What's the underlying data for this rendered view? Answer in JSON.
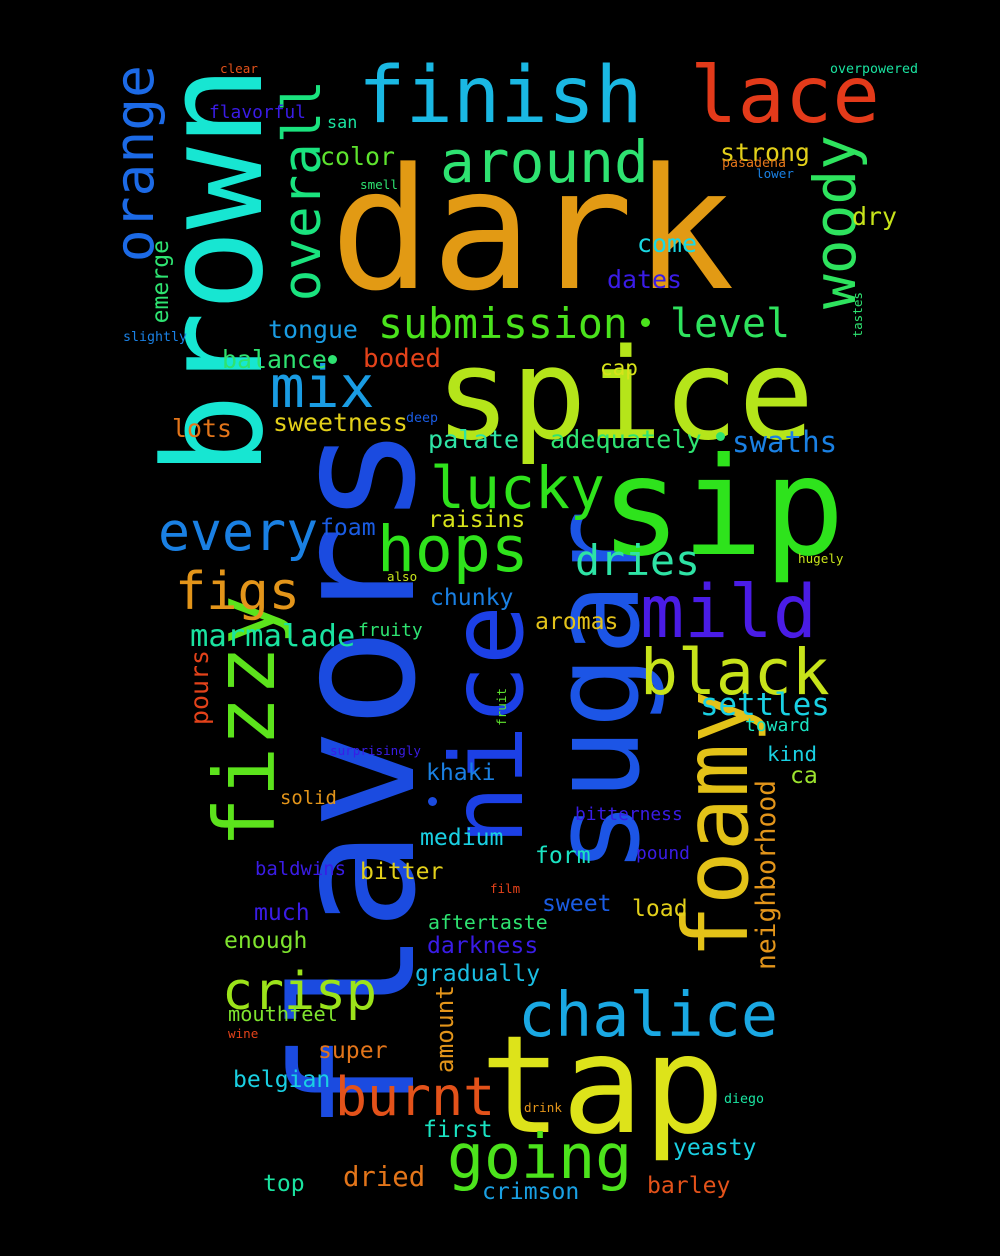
{
  "colors": {
    "background": "#000000"
  },
  "words": [
    {
      "text": "dark",
      "color": "#E29A14"
    },
    {
      "text": "flavors",
      "color": "#1B4BE0"
    },
    {
      "text": "spice",
      "color": "#B5E51A"
    },
    {
      "text": "tap",
      "color": "#DDE31A"
    },
    {
      "text": "brown",
      "color": "#17E6D2"
    },
    {
      "text": "sugar",
      "color": "#1C55E6"
    },
    {
      "text": "sip",
      "color": "#2EE31C"
    },
    {
      "text": "finish",
      "color": "#1AB8E3"
    },
    {
      "text": "lace",
      "color": "#E33A1A"
    },
    {
      "text": "nice",
      "color": "#1C40E6"
    },
    {
      "text": "foamy",
      "color": "#E3C218"
    },
    {
      "text": "fizzy",
      "color": "#5CE31C"
    },
    {
      "text": "mild",
      "color": "#4A1CE6"
    },
    {
      "text": "chalice",
      "color": "#1AA8E3"
    },
    {
      "text": "going",
      "color": "#4CE31C"
    },
    {
      "text": "black",
      "color": "#C7E31A"
    },
    {
      "text": "hops",
      "color": "#2FE31C"
    },
    {
      "text": "lucky",
      "color": "#2FE31C"
    },
    {
      "text": "crisp",
      "color": "#9CE31A"
    },
    {
      "text": "mix",
      "color": "#1A9CE3"
    },
    {
      "text": "around",
      "color": "#2EE371"
    },
    {
      "text": "every",
      "color": "#1A80E3"
    },
    {
      "text": "woody",
      "color": "#2EE35E"
    },
    {
      "text": "overall",
      "color": "#1AE37E"
    },
    {
      "text": "orange",
      "color": "#1C6AE6"
    },
    {
      "text": "figs",
      "color": "#E3951A"
    },
    {
      "text": "burnt",
      "color": "#E3521A"
    },
    {
      "text": "submission",
      "color": "#4AE31C"
    },
    {
      "text": "level",
      "color": "#2FE35E"
    },
    {
      "text": "dries",
      "color": "#2EE3A5"
    },
    {
      "text": "settles",
      "color": "#1AD0E3"
    },
    {
      "text": "marmalade",
      "color": "#1AE3A0"
    },
    {
      "text": "neighborhood",
      "color": "#E3951A"
    },
    {
      "text": "strong",
      "color": "#E3D01A"
    },
    {
      "text": "swaths",
      "color": "#1A80E3"
    },
    {
      "text": "tongue",
      "color": "#1A9CE3"
    },
    {
      "text": "color",
      "color": "#5EE32E"
    },
    {
      "text": "balance",
      "color": "#2EE371"
    },
    {
      "text": "boded",
      "color": "#E3421A"
    },
    {
      "text": "sweetness",
      "color": "#E3D01A"
    },
    {
      "text": "palate",
      "color": "#2EE3A5"
    },
    {
      "text": "adequately",
      "color": "#2EE371"
    },
    {
      "text": "raisins",
      "color": "#D7E31A"
    },
    {
      "text": "dates",
      "color": "#3A1CE6"
    },
    {
      "text": "come",
      "color": "#1AD8E3"
    },
    {
      "text": "dry",
      "color": "#C7E31A"
    },
    {
      "text": "emerge",
      "color": "#2EE371"
    },
    {
      "text": "lots",
      "color": "#E3751A"
    },
    {
      "text": "foam",
      "color": "#1A5CE3"
    },
    {
      "text": "chunky",
      "color": "#1A80E3"
    },
    {
      "text": "aromas",
      "color": "#E3C21A"
    },
    {
      "text": "cap",
      "color": "#D7E31A"
    },
    {
      "text": "pours",
      "color": "#E3421A"
    },
    {
      "text": "khaki",
      "color": "#1A80E3"
    },
    {
      "text": "medium",
      "color": "#1AD0E3"
    },
    {
      "text": "form",
      "color": "#1AE3C2"
    },
    {
      "text": "bitter",
      "color": "#E3D01A"
    },
    {
      "text": "much",
      "color": "#3A1CE6"
    },
    {
      "text": "enough",
      "color": "#7EE32E"
    },
    {
      "text": "aftertaste",
      "color": "#2EE371"
    },
    {
      "text": "sweet",
      "color": "#1A5CE3"
    },
    {
      "text": "load",
      "color": "#E3D01A"
    },
    {
      "text": "darkness",
      "color": "#3A1CE6"
    },
    {
      "text": "gradually",
      "color": "#1ABEE3"
    },
    {
      "text": "mouthfeel",
      "color": "#7EE32E"
    },
    {
      "text": "amount",
      "color": "#E3951A"
    },
    {
      "text": "super",
      "color": "#E3751A"
    },
    {
      "text": "belgian",
      "color": "#1AD0E3"
    },
    {
      "text": "first",
      "color": "#1AE3C2"
    },
    {
      "text": "yeasty",
      "color": "#1AD0E3"
    },
    {
      "text": "top",
      "color": "#1AE3A0"
    },
    {
      "text": "dried",
      "color": "#E3751A"
    },
    {
      "text": "crimson",
      "color": "#1AA0E3"
    },
    {
      "text": "barley",
      "color": "#E3521A"
    },
    {
      "text": "kind",
      "color": "#1AD0E3"
    },
    {
      "text": "ca",
      "color": "#9CE32E"
    },
    {
      "text": "toward",
      "color": "#1AE3C2"
    },
    {
      "text": "solid",
      "color": "#E3951A"
    },
    {
      "text": "baldwins",
      "color": "#3A1CE6"
    },
    {
      "text": "bitterness",
      "color": "#3A1CE6"
    },
    {
      "text": "pound",
      "color": "#3A1CE6"
    },
    {
      "text": "fruity",
      "color": "#2EE371"
    },
    {
      "text": "flavorful",
      "color": "#3A1CE6"
    },
    {
      "text": "san",
      "color": "#1AE3A0"
    },
    {
      "text": "clear",
      "color": "#E3521A"
    },
    {
      "text": "overpowered",
      "color": "#1AE3A0"
    },
    {
      "text": "pasadena",
      "color": "#E3751A"
    },
    {
      "text": "lower",
      "color": "#1A80E3"
    },
    {
      "text": "smell",
      "color": "#2EE371"
    },
    {
      "text": "slightly",
      "color": "#1A80E3"
    },
    {
      "text": "tastes",
      "color": "#2EE371"
    },
    {
      "text": "deep",
      "color": "#1A5CE3"
    },
    {
      "text": "hugely",
      "color": "#C7E31A"
    },
    {
      "text": "also",
      "color": "#C7E31A"
    },
    {
      "text": "fruit",
      "color": "#5EE32E"
    },
    {
      "text": "surprisingly",
      "color": "#3A1CE6"
    },
    {
      "text": "film",
      "color": "#E3421A"
    },
    {
      "text": "wine",
      "color": "#E3421A"
    },
    {
      "text": "drink",
      "color": "#E3951A"
    },
    {
      "text": "diego",
      "color": "#1AE3A0"
    }
  ],
  "dots": [
    {
      "name": "dot-submission-level",
      "color": "#4AE31C"
    },
    {
      "name": "dot-balance",
      "color": "#2EE371"
    },
    {
      "name": "dot-adequately",
      "color": "#2EE371"
    },
    {
      "name": "dot-flavors",
      "color": "#1B4BE0"
    }
  ]
}
